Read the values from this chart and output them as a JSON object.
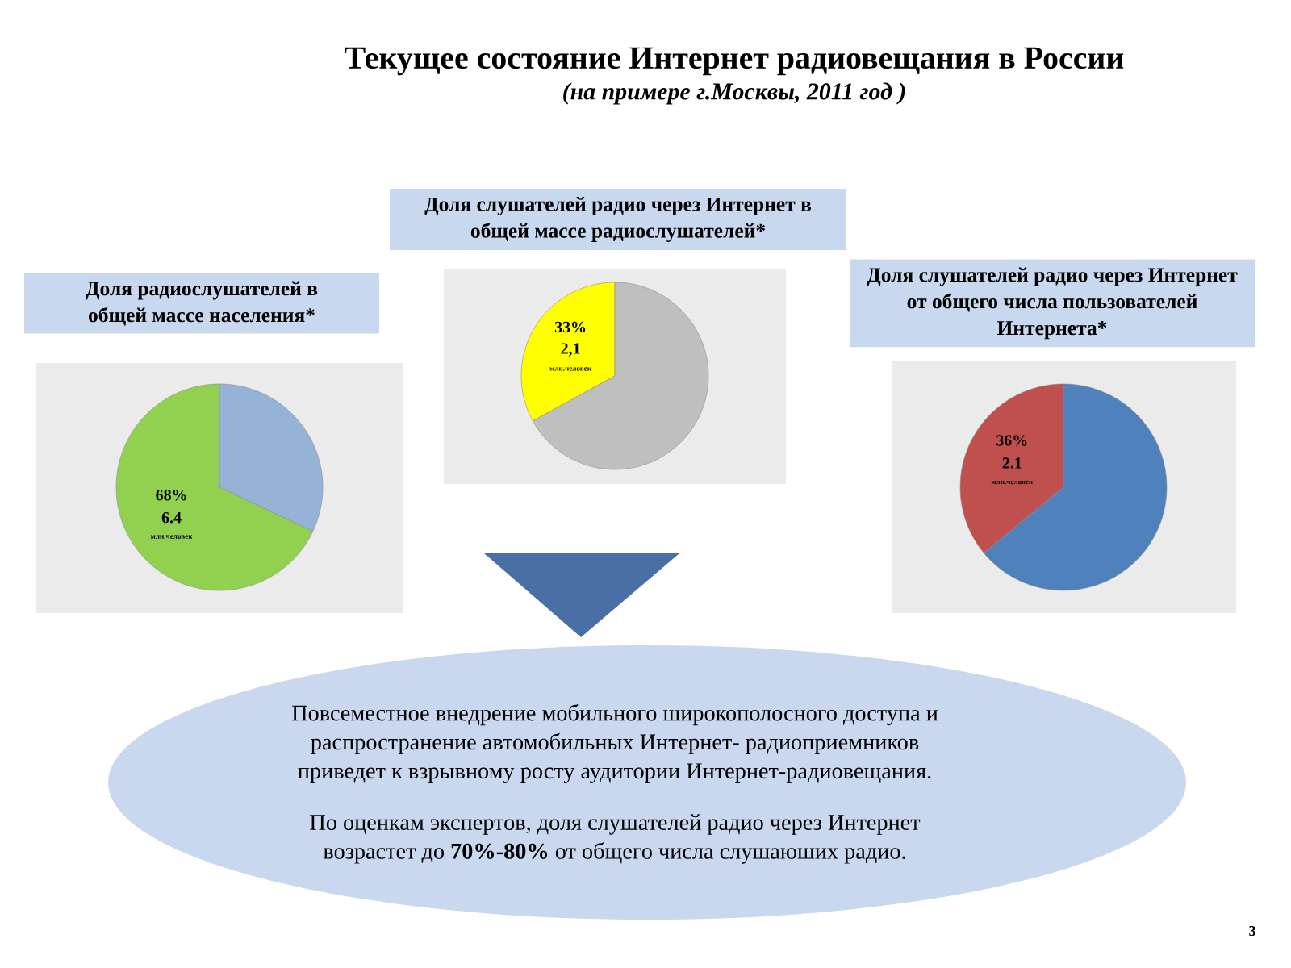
{
  "chart_data": [
    {
      "type": "other",
      "title": "Текущее состояние Интернет радиовещания в России",
      "subtitle": "(на примере г.Москвы, 2011 год )"
    },
    {
      "type": "pie",
      "title": "Доля радиослушателей в общей массе населения*",
      "categories": [
        null,
        null
      ],
      "values": [
        68,
        32
      ],
      "colors": [
        "#92d050",
        "#95b3d7"
      ],
      "value_labels": [
        "68%",
        null
      ],
      "annotations": [
        "6.4",
        "млн.человек"
      ]
    },
    {
      "type": "pie",
      "title": "Доля слушателей радио через Интернет в общей массе радиослушателей*",
      "categories": [
        null,
        null
      ],
      "values": [
        33,
        67
      ],
      "colors": [
        "#ffff00",
        "#bfbfbf"
      ],
      "value_labels": [
        "33%",
        null
      ],
      "annotations": [
        "2,1",
        "млн.человек"
      ]
    },
    {
      "type": "pie",
      "title": "Доля слушателей радио через Интернет от общего числа пользователей Интернета*",
      "categories": [
        null,
        null
      ],
      "values": [
        36,
        64
      ],
      "colors": [
        "#c0504d",
        "#4f81bd"
      ],
      "value_labels": [
        "36%",
        null
      ],
      "annotations": [
        "2.1",
        "млн.человек"
      ]
    },
    {
      "type": "other",
      "annotations": [
        "Повсеместное внедрение мобильного широкополосного доступа и распространение автомобильных Интернет- радиоприемников приведет к взрывному росту аудитории Интернет-радиовещания.",
        "По оценкам экспертов, доля слушателей радио через Интернет возрастет до **70%-80%** от общего числа слушаюших радио.",
        "3"
      ]
    }
  ]
}
